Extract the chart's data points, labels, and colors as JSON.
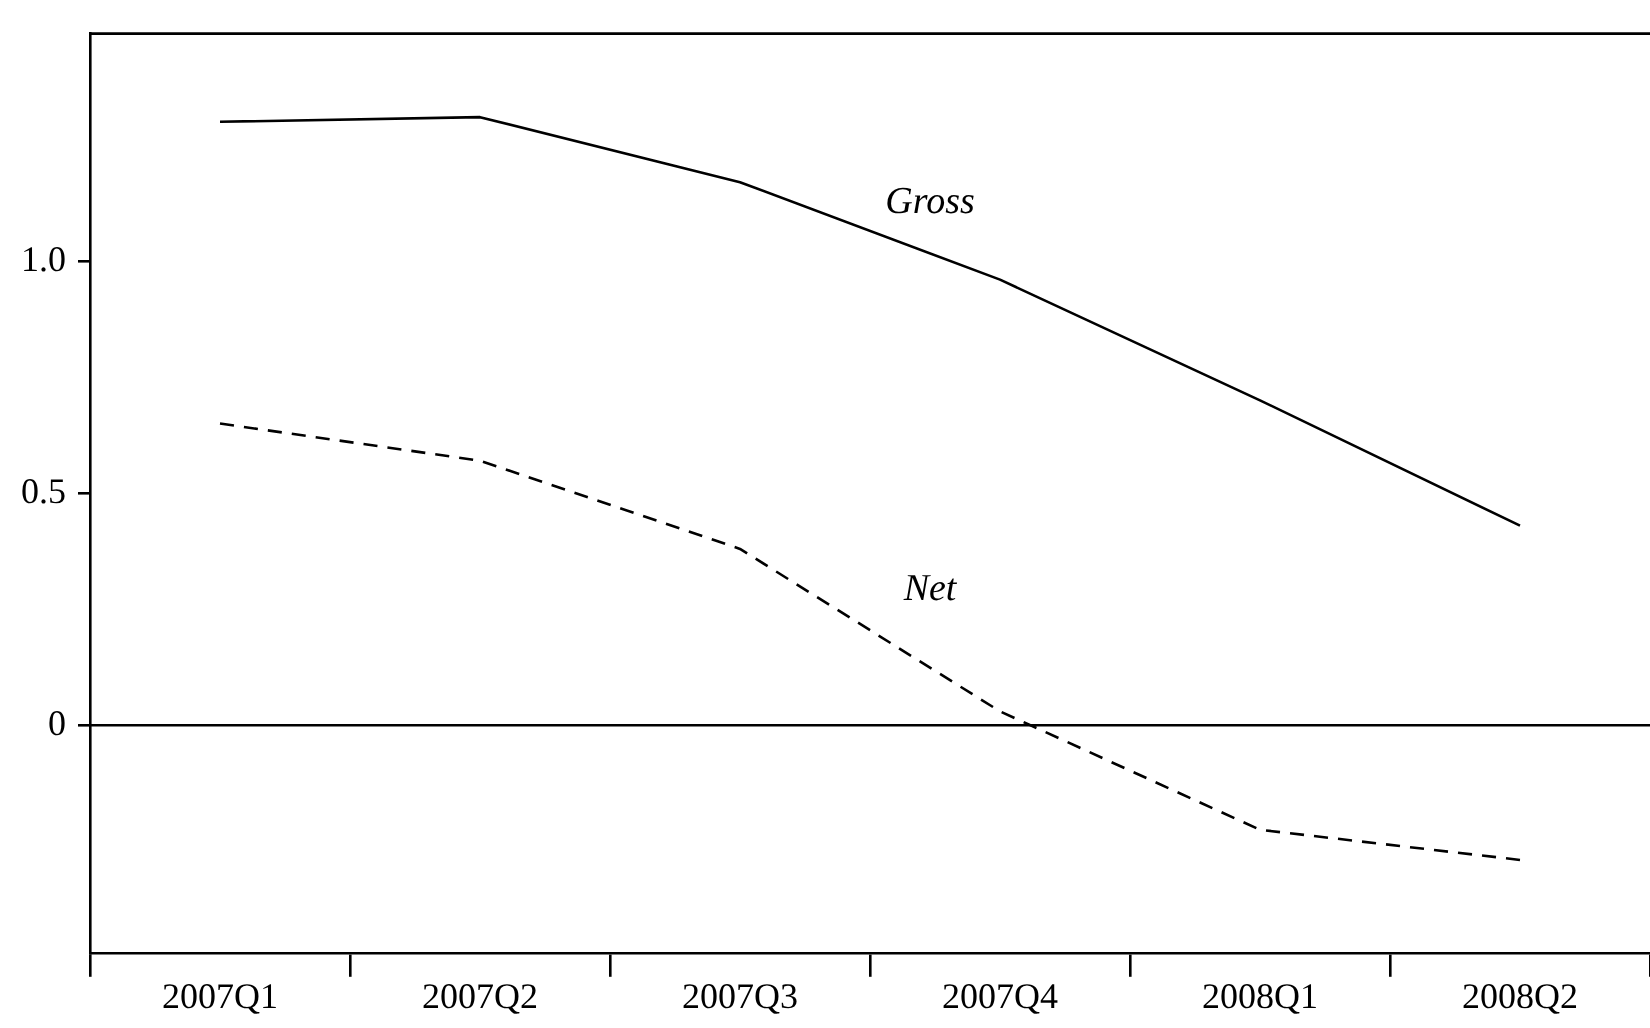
{
  "chart_data": {
    "type": "line",
    "categories": [
      "2007Q1",
      "2007Q2",
      "2007Q3",
      "2007Q4",
      "2008Q1",
      "2008Q2"
    ],
    "series": [
      {
        "name": "Gross",
        "color": "#000000",
        "line_style": "solid",
        "values": [
          1.3,
          1.31,
          1.17,
          0.96,
          0.7,
          0.43
        ]
      },
      {
        "name": "Net",
        "color": "#000000",
        "line_style": "dashed",
        "values": [
          0.65,
          0.57,
          0.38,
          0.03,
          -0.225,
          -0.29
        ]
      }
    ],
    "ylim": [
      -0.49,
      1.49
    ],
    "yticks": [
      0,
      0.5,
      {
        "value": 1,
        "label": "1.0"
      }
    ],
    "ref_lines": [
      {
        "axis": "y",
        "value": 0,
        "color": "#000000",
        "line_style": "solid"
      }
    ],
    "grid": false,
    "legend": false,
    "marker": "none"
  }
}
